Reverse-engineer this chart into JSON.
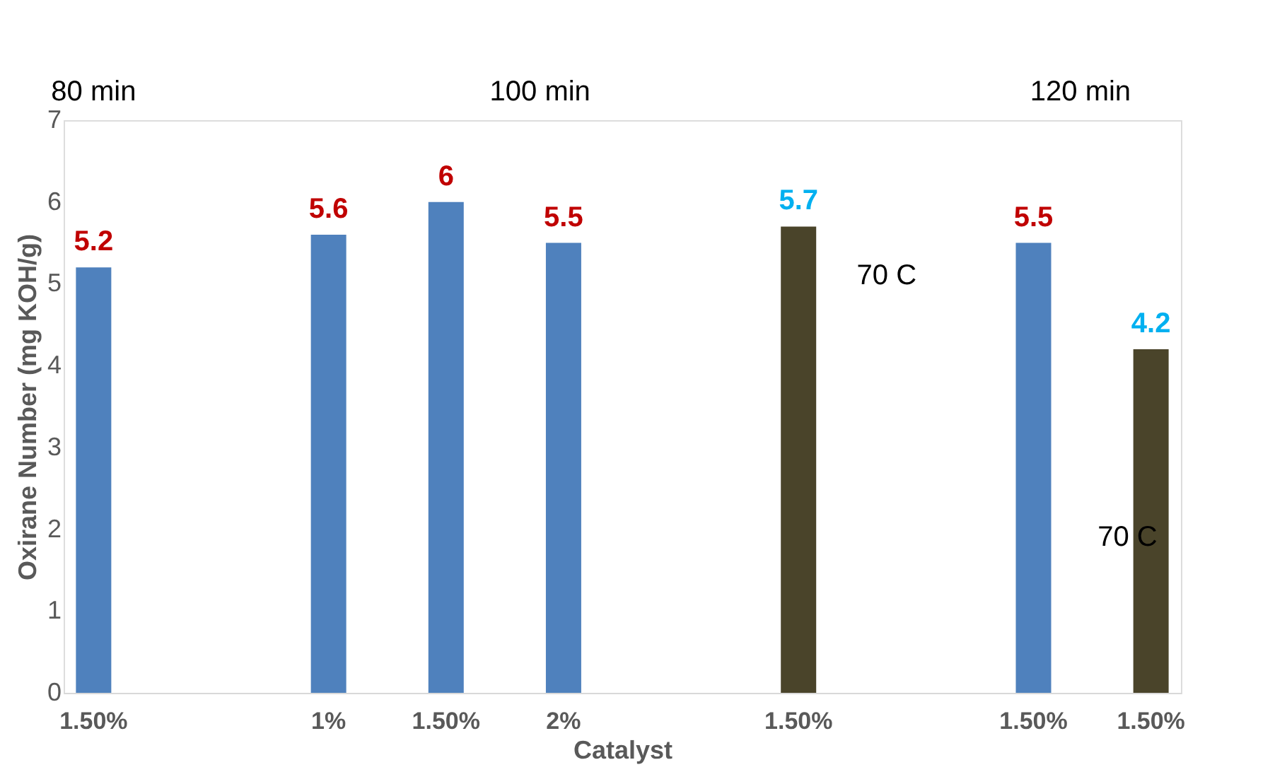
{
  "chart_data": {
    "type": "bar",
    "xlabel": "Catalyst",
    "ylabel": "Oxirane Number (mg KOH/g)",
    "categories": [
      "1.50%",
      null,
      "1%",
      "1.50%",
      "2%",
      null,
      "1.50%",
      null,
      "1.50%",
      "1.50%"
    ],
    "values": [
      5.2,
      null,
      5.6,
      6,
      5.5,
      null,
      5.7,
      null,
      5.5,
      4.2
    ],
    "colors": [
      "#4f81bd",
      "#4f81bd",
      "#4f81bd",
      "#4f81bd",
      "#4f81bd",
      "#4f81bd",
      "#4a442a",
      "#4f81bd",
      "#4f81bd",
      "#4a442a"
    ],
    "value_labels": [
      "5.2",
      null,
      "5.6",
      "6",
      "5.5",
      null,
      "5.7",
      null,
      "5.5",
      "4.2"
    ],
    "ylim": [
      0,
      7
    ],
    "yticks": [
      0,
      1,
      2,
      3,
      4,
      5,
      6,
      7
    ],
    "grid": false,
    "annotations": [
      "80 min",
      "100 min",
      "120 min",
      "70 C",
      "70 C"
    ]
  }
}
